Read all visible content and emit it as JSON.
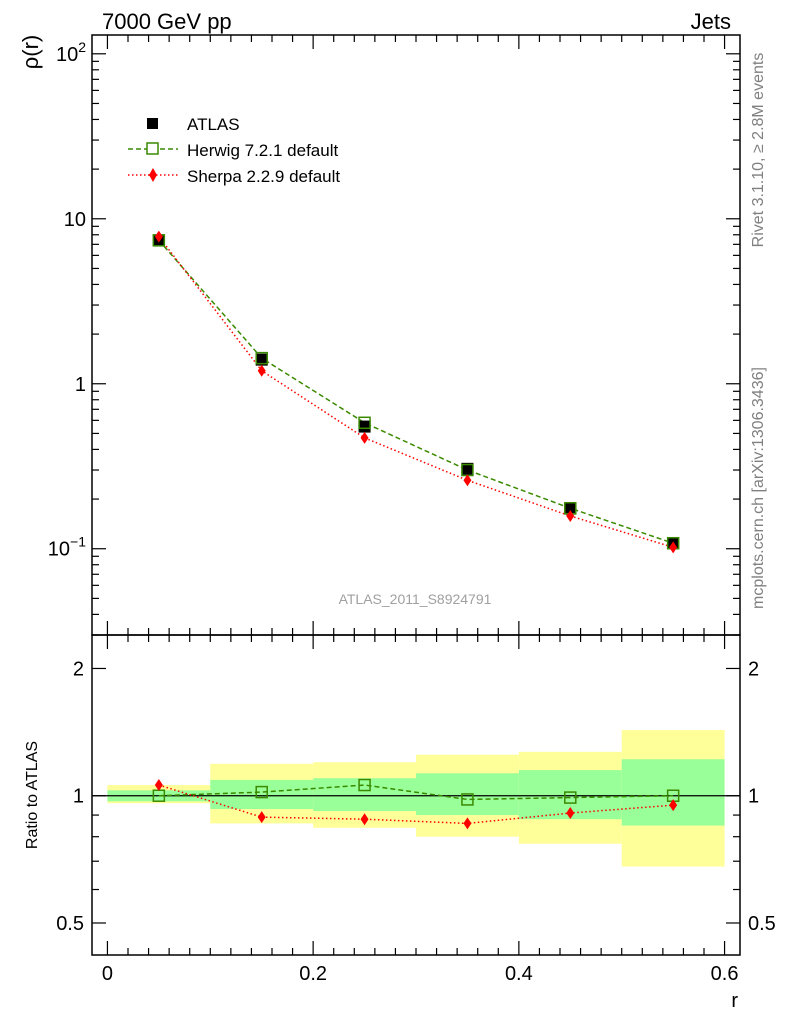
{
  "header": {
    "left": "7000 GeV pp",
    "right": "Jets"
  },
  "side": {
    "rivet": "Rivet 3.1.10, ≥ 2.8M events",
    "mcplots": "mcplots.cern.ch [arXiv:1306.3436]"
  },
  "watermark": "ATLAS_2011_S8924791",
  "colors": {
    "herwig": "#3a8a00",
    "sherpa": "#ff0000",
    "data": "#000000",
    "band_inner": "#99ff99",
    "band_outer": "#ffff99"
  },
  "chart_data": [
    {
      "type": "scatter",
      "ylabel": "ρ(r)",
      "yscale": "log",
      "ylim": [
        0.03,
        130
      ],
      "xlim": [
        -0.015,
        0.615
      ],
      "y_ticks": [
        {
          "v": 100,
          "base": "10",
          "exp": "2"
        },
        {
          "v": 10,
          "base": "10",
          "exp": ""
        },
        {
          "v": 1,
          "base": "1",
          "exp": ""
        },
        {
          "v": 0.1,
          "base": "10",
          "exp": "−1"
        }
      ],
      "legend": {
        "placement": "top-left",
        "entries": [
          "ATLAS",
          "Herwig 7.2.1 default",
          "Sherpa 2.2.9 default"
        ]
      },
      "x": [
        0.05,
        0.15,
        0.25,
        0.35,
        0.45,
        0.55
      ],
      "series": [
        {
          "name": "ATLAS",
          "marker": "filled-square",
          "values": [
            7.4,
            1.4,
            0.55,
            0.305,
            0.175,
            0.108
          ]
        },
        {
          "name": "Herwig 7.2.1 default",
          "marker": "open-square",
          "line": "dashed",
          "values": [
            7.4,
            1.43,
            0.58,
            0.3,
            0.176,
            0.108
          ]
        },
        {
          "name": "Sherpa 2.2.9 default",
          "marker": "diamond",
          "line": "dotted",
          "values": [
            7.8,
            1.2,
            0.47,
            0.26,
            0.158,
            0.102
          ]
        }
      ]
    },
    {
      "type": "line",
      "ylabel": "Ratio to ATLAS",
      "xlabel": "r",
      "yscale": "log",
      "ylim": [
        0.42,
        2.4
      ],
      "xlim": [
        -0.015,
        0.615
      ],
      "x_ticks": [
        "0",
        "0.2",
        "0.4",
        "0.6"
      ],
      "x_tick_values": [
        0,
        0.2,
        0.4,
        0.6
      ],
      "y_ticks": [
        "0.5",
        "1",
        "2"
      ],
      "y_tick_values": [
        0.5,
        1,
        2
      ],
      "bins": [
        [
          0,
          0.1
        ],
        [
          0.1,
          0.2
        ],
        [
          0.2,
          0.3
        ],
        [
          0.3,
          0.4
        ],
        [
          0.4,
          0.5
        ],
        [
          0.5,
          0.6
        ]
      ],
      "band_inner": [
        [
          0.97,
          1.03
        ],
        [
          0.93,
          1.09
        ],
        [
          0.92,
          1.1
        ],
        [
          0.9,
          1.13
        ],
        [
          0.88,
          1.15
        ],
        [
          0.85,
          1.22
        ]
      ],
      "band_outer": [
        [
          0.96,
          1.06
        ],
        [
          0.86,
          1.19
        ],
        [
          0.84,
          1.2
        ],
        [
          0.8,
          1.25
        ],
        [
          0.77,
          1.27
        ],
        [
          0.68,
          1.43
        ]
      ],
      "x": [
        0.05,
        0.15,
        0.25,
        0.35,
        0.45,
        0.55
      ],
      "series": [
        {
          "name": "Herwig 7.2.1 default",
          "values": [
            1.0,
            1.02,
            1.06,
            0.98,
            0.99,
            1.0
          ]
        },
        {
          "name": "Sherpa 2.2.9 default",
          "values": [
            1.06,
            0.89,
            0.88,
            0.86,
            0.91,
            0.95
          ]
        }
      ]
    }
  ]
}
